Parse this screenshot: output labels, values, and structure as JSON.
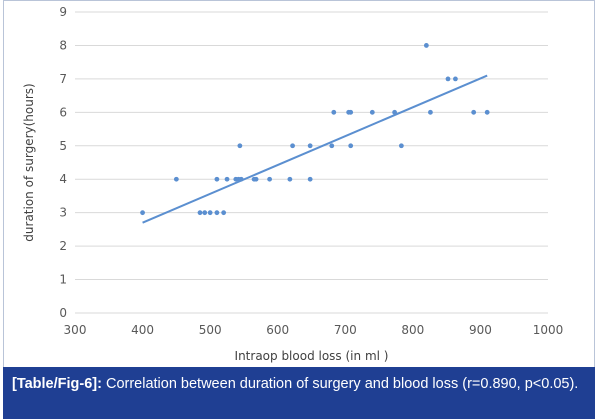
{
  "caption": {
    "label": "[Table/Fig-6]:",
    "text": " Correlation between duration of surgery and blood loss (r=0.890, p<0.05)."
  },
  "colors": {
    "series": "#5b8fd0",
    "caption_bg": "#1f3f93",
    "grid": "#d9d9d9"
  },
  "chart_data": {
    "type": "scatter",
    "xlabel": "Intraop blood loss (in ml )",
    "ylabel": "duration of surgery(hours)",
    "xlim": [
      300,
      1000
    ],
    "ylim": [
      0,
      9
    ],
    "xticks": [
      300,
      400,
      500,
      600,
      700,
      800,
      900,
      1000
    ],
    "yticks": [
      0,
      1,
      2,
      3,
      4,
      5,
      6,
      7,
      8,
      9
    ],
    "grid": "horizontal",
    "legend": "none",
    "trendline": {
      "x": [
        400,
        910
      ],
      "y": [
        2.7,
        7.1
      ]
    },
    "points": [
      {
        "x": 400,
        "y": 3
      },
      {
        "x": 450,
        "y": 4
      },
      {
        "x": 485,
        "y": 3
      },
      {
        "x": 492,
        "y": 3
      },
      {
        "x": 500,
        "y": 3
      },
      {
        "x": 510,
        "y": 3
      },
      {
        "x": 510,
        "y": 4
      },
      {
        "x": 520,
        "y": 3
      },
      {
        "x": 525,
        "y": 4
      },
      {
        "x": 538,
        "y": 4
      },
      {
        "x": 542,
        "y": 4
      },
      {
        "x": 544,
        "y": 5
      },
      {
        "x": 546,
        "y": 4
      },
      {
        "x": 565,
        "y": 4
      },
      {
        "x": 568,
        "y": 4
      },
      {
        "x": 588,
        "y": 4
      },
      {
        "x": 618,
        "y": 4
      },
      {
        "x": 622,
        "y": 5
      },
      {
        "x": 648,
        "y": 4
      },
      {
        "x": 648,
        "y": 5
      },
      {
        "x": 680,
        "y": 5
      },
      {
        "x": 683,
        "y": 6
      },
      {
        "x": 705,
        "y": 6
      },
      {
        "x": 708,
        "y": 6
      },
      {
        "x": 708,
        "y": 5
      },
      {
        "x": 740,
        "y": 6
      },
      {
        "x": 773,
        "y": 6
      },
      {
        "x": 783,
        "y": 5
      },
      {
        "x": 820,
        "y": 8
      },
      {
        "x": 826,
        "y": 6
      },
      {
        "x": 852,
        "y": 7
      },
      {
        "x": 863,
        "y": 7
      },
      {
        "x": 890,
        "y": 6
      },
      {
        "x": 910,
        "y": 6
      }
    ]
  }
}
